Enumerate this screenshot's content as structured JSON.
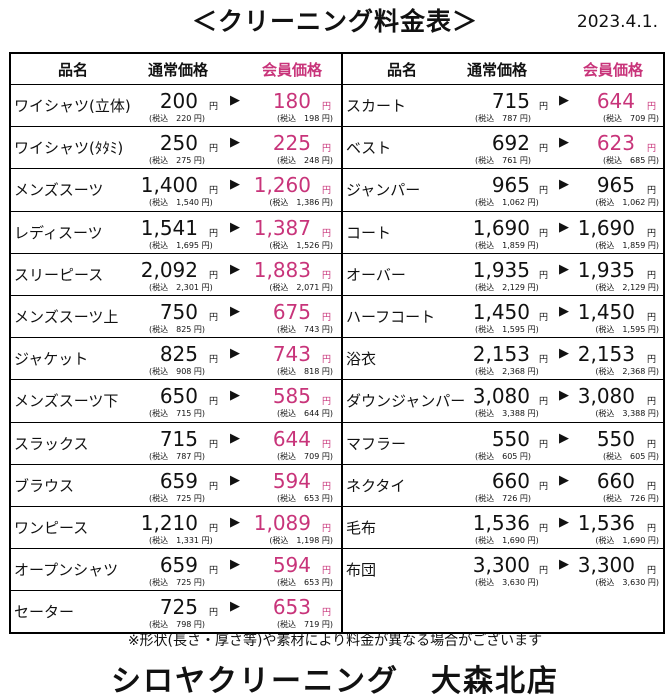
{
  "title": "＜クリーニング料金表＞",
  "date": "2023.4.1.",
  "headers": {
    "name": "品名",
    "regular": "通常価格",
    "member": "会員価格"
  },
  "labels": {
    "yen": "円",
    "tax": "(税込",
    "arrow": "▶"
  },
  "left_rows": [
    {
      "name": "ワイシャツ(立体)",
      "reg": "200",
      "reg_tax": "220 円)",
      "mem": "180",
      "mem_tax": "198 円)"
    },
    {
      "name": "ワイシャツ(ﾀﾀﾐ)",
      "reg": "250",
      "reg_tax": "275 円)",
      "mem": "225",
      "mem_tax": "248 円)"
    },
    {
      "name": "メンズスーツ",
      "reg": "1,400",
      "reg_tax": "1,540 円)",
      "mem": "1,260",
      "mem_tax": "1,386 円)"
    },
    {
      "name": "レディスーツ",
      "reg": "1,541",
      "reg_tax": "1,695 円)",
      "mem": "1,387",
      "mem_tax": "1,526 円)"
    },
    {
      "name": "スリーピース",
      "reg": "2,092",
      "reg_tax": "2,301 円)",
      "mem": "1,883",
      "mem_tax": "2,071 円)"
    },
    {
      "name": "メンズスーツ上",
      "reg": "750",
      "reg_tax": "825 円)",
      "mem": "675",
      "mem_tax": "743 円)"
    },
    {
      "name": "ジャケット",
      "reg": "825",
      "reg_tax": "908 円)",
      "mem": "743",
      "mem_tax": "818 円)"
    },
    {
      "name": "メンズスーツ下",
      "reg": "650",
      "reg_tax": "715 円)",
      "mem": "585",
      "mem_tax": "644 円)"
    },
    {
      "name": "スラックス",
      "reg": "715",
      "reg_tax": "787 円)",
      "mem": "644",
      "mem_tax": "709 円)"
    },
    {
      "name": "ブラウス",
      "reg": "659",
      "reg_tax": "725 円)",
      "mem": "594",
      "mem_tax": "653 円)"
    },
    {
      "name": "ワンピース",
      "reg": "1,210",
      "reg_tax": "1,331 円)",
      "mem": "1,089",
      "mem_tax": "1,198 円)"
    },
    {
      "name": "オープンシャツ",
      "reg": "659",
      "reg_tax": "725 円)",
      "mem": "594",
      "mem_tax": "653 円)"
    },
    {
      "name": "セーター",
      "reg": "725",
      "reg_tax": "798 円)",
      "mem": "653",
      "mem_tax": "719 円)"
    }
  ],
  "right_rows": [
    {
      "name": "スカート",
      "reg": "715",
      "reg_tax": "787 円)",
      "mem": "644",
      "mem_tax": "709 円)",
      "mem_pink": true
    },
    {
      "name": "ベスト",
      "reg": "692",
      "reg_tax": "761 円)",
      "mem": "623",
      "mem_tax": "685 円)",
      "mem_pink": true
    },
    {
      "name": "ジャンパー",
      "reg": "965",
      "reg_tax": "1,062 円)",
      "mem": "965",
      "mem_tax": "1,062 円)",
      "mem_pink": false
    },
    {
      "name": "コート",
      "reg": "1,690",
      "reg_tax": "1,859 円)",
      "mem": "1,690",
      "mem_tax": "1,859 円)",
      "mem_pink": false
    },
    {
      "name": "オーバー",
      "reg": "1,935",
      "reg_tax": "2,129 円)",
      "mem": "1,935",
      "mem_tax": "2,129 円)",
      "mem_pink": false
    },
    {
      "name": "ハーフコート",
      "reg": "1,450",
      "reg_tax": "1,595 円)",
      "mem": "1,450",
      "mem_tax": "1,595 円)",
      "mem_pink": false
    },
    {
      "name": "浴衣",
      "reg": "2,153",
      "reg_tax": "2,368 円)",
      "mem": "2,153",
      "mem_tax": "2,368 円)",
      "mem_pink": false
    },
    {
      "name": "ダウンジャンパー",
      "reg": "3,080",
      "reg_tax": "3,388 円)",
      "mem": "3,080",
      "mem_tax": "3,388 円)",
      "mem_pink": false
    },
    {
      "name": "マフラー",
      "reg": "550",
      "reg_tax": "605 円)",
      "mem": "550",
      "mem_tax": "605 円)",
      "mem_pink": false
    },
    {
      "name": "ネクタイ",
      "reg": "660",
      "reg_tax": "726 円)",
      "mem": "660",
      "mem_tax": "726 円)",
      "mem_pink": false
    },
    {
      "name": "毛布",
      "reg": "1,536",
      "reg_tax": "1,690 円)",
      "mem": "1,536",
      "mem_tax": "1,690 円)",
      "mem_pink": false
    },
    {
      "name": "布団",
      "reg": "3,300",
      "reg_tax": "3,630 円)",
      "mem": "3,300",
      "mem_tax": "3,630 円)",
      "mem_pink": false
    }
  ],
  "colors": {
    "member": "#c8347a",
    "text": "#111111"
  },
  "note": "※形状(長さ・厚さ等)や素材により料金が異なる場合がございます",
  "store": "シロヤクリーニング　大森北店"
}
